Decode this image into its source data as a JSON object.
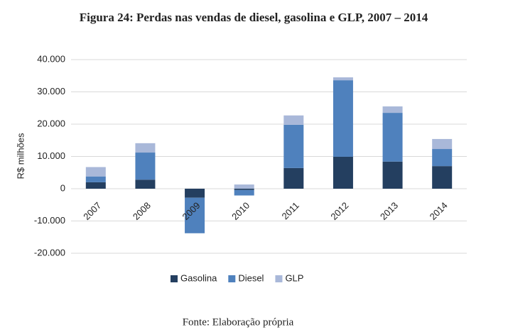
{
  "chart_data": {
    "type": "bar",
    "stacked": true,
    "title": "Figura 24: Perdas nas vendas de diesel, gasolina e GLP, 2007 – 2014",
    "y_label": "R$ milhões",
    "source": "Fonte: Elaboração própria",
    "categories": [
      "2007",
      "2008",
      "2009",
      "2010",
      "2011",
      "2012",
      "2013",
      "2014"
    ],
    "series": [
      {
        "name": "Gasolina",
        "color": "#243f60",
        "values": [
          2000,
          2800,
          -2800,
          -400,
          6400,
          9900,
          8400,
          7000
        ]
      },
      {
        "name": "Diesel",
        "color": "#4f81bd",
        "values": [
          1800,
          8400,
          -11000,
          -1700,
          13400,
          23700,
          15100,
          5300
        ]
      },
      {
        "name": "GLP",
        "color": "#a9b8d9",
        "values": [
          2900,
          2900,
          0,
          1300,
          2900,
          900,
          2000,
          3100
        ]
      }
    ],
    "ylim": [
      -20000,
      40000
    ],
    "yticks": [
      {
        "value": -20000,
        "label": "-20.000"
      },
      {
        "value": -10000,
        "label": "-10.000"
      },
      0,
      {
        "value": 10000,
        "label": "10.000"
      },
      {
        "value": 20000,
        "label": "20.000"
      },
      {
        "value": 30000,
        "label": "30.000"
      },
      {
        "value": 40000,
        "label": "40.000"
      }
    ],
    "grid": true,
    "legend": "bottom"
  }
}
